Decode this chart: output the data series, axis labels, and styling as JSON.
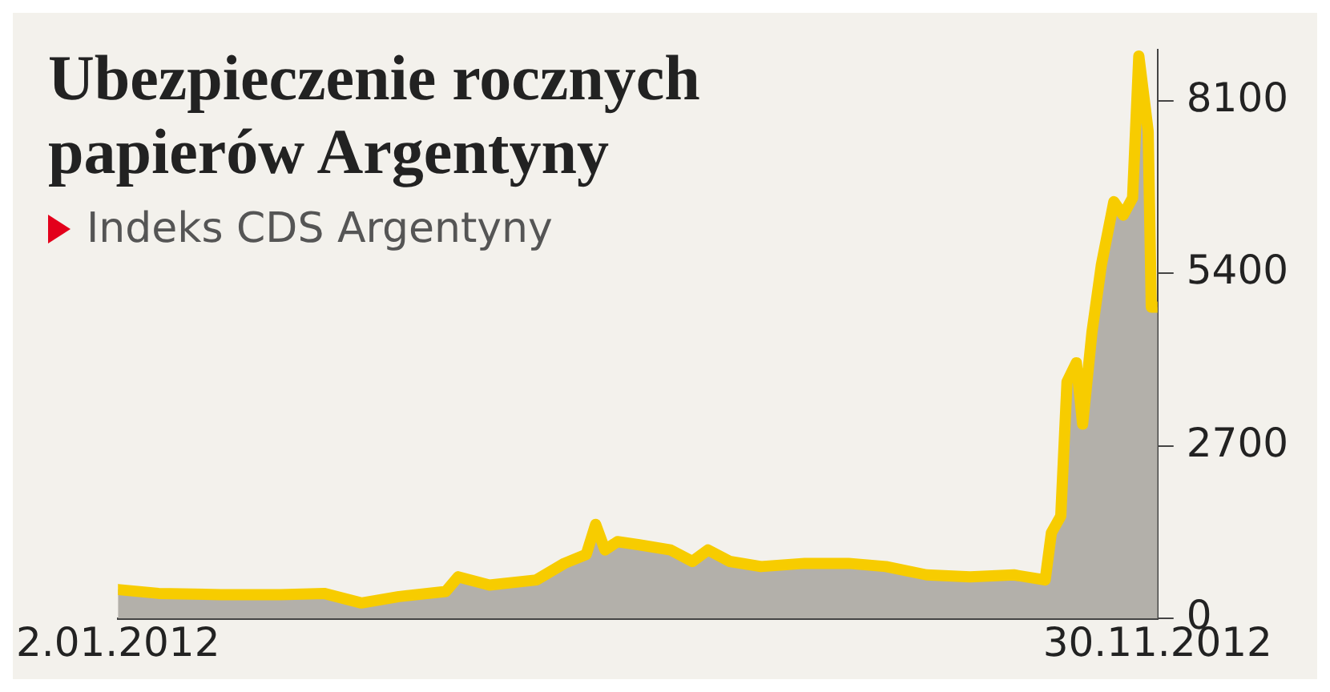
{
  "chart_data": {
    "type": "area",
    "title": "Ubezpieczenie rocznych papierów Argentyny",
    "subtitle": "Indeks CDS Argentyny",
    "x": [
      "2012-01-02",
      "2012-01-15",
      "2012-02-04",
      "2012-02-23",
      "2012-03-08",
      "2012-03-20",
      "2012-04-01",
      "2012-04-16",
      "2012-04-20",
      "2012-04-30",
      "2012-05-15",
      "2012-05-24",
      "2012-05-31",
      "2012-06-03",
      "2012-06-06",
      "2012-06-10",
      "2012-06-17",
      "2012-06-27",
      "2012-07-04",
      "2012-07-09",
      "2012-07-16",
      "2012-07-26",
      "2012-08-09",
      "2012-08-23",
      "2012-09-04",
      "2012-09-17",
      "2012-10-01",
      "2012-10-15",
      "2012-10-25",
      "2012-10-27",
      "2012-10-30",
      "2012-11-01",
      "2012-11-04",
      "2012-11-06",
      "2012-11-09",
      "2012-11-12",
      "2012-11-16",
      "2012-11-19",
      "2012-11-22",
      "2012-11-24",
      "2012-11-27",
      "2012-11-28",
      "2012-11-30"
    ],
    "series": [
      {
        "color": "#f7cc00",
        "values": [
          450,
          390,
          370,
          370,
          390,
          240,
          340,
          420,
          650,
          520,
          600,
          860,
          1000,
          1470,
          1070,
          1200,
          1150,
          1070,
          890,
          1070,
          890,
          810,
          860,
          860,
          810,
          680,
          650,
          680,
          600,
          1340,
          1600,
          3700,
          4000,
          3040,
          4480,
          5530,
          6520,
          6310,
          6580,
          8800,
          7620,
          4870,
          4870
        ]
      }
    ],
    "xlim": [
      "2012-01-02",
      "2012-11-30"
    ],
    "xticks": [
      {
        "value": "2012-01-02",
        "label": "2.01.2012"
      },
      {
        "value": "2012-11-30",
        "label": "30.11.2012"
      }
    ],
    "ylim": [
      0,
      8900
    ],
    "yticks": [
      0,
      2700,
      5400,
      8100
    ],
    "grid": false,
    "legend": false,
    "line_style": "solid",
    "marker": "none"
  }
}
